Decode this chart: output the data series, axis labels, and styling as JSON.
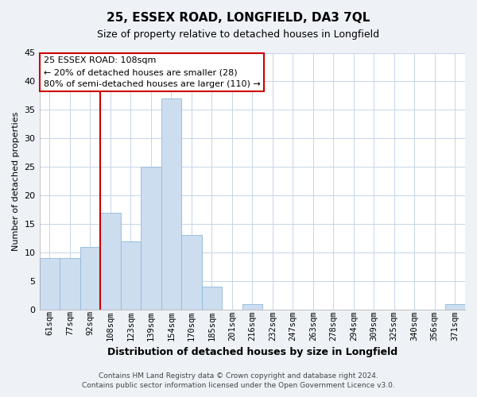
{
  "title": "25, ESSEX ROAD, LONGFIELD, DA3 7QL",
  "subtitle": "Size of property relative to detached houses in Longfield",
  "xlabel": "Distribution of detached houses by size in Longfield",
  "ylabel": "Number of detached properties",
  "bin_labels": [
    "61sqm",
    "77sqm",
    "92sqm",
    "108sqm",
    "123sqm",
    "139sqm",
    "154sqm",
    "170sqm",
    "185sqm",
    "201sqm",
    "216sqm",
    "232sqm",
    "247sqm",
    "263sqm",
    "278sqm",
    "294sqm",
    "309sqm",
    "325sqm",
    "340sqm",
    "356sqm",
    "371sqm"
  ],
  "bar_heights": [
    9,
    9,
    11,
    17,
    12,
    25,
    37,
    13,
    4,
    0,
    1,
    0,
    0,
    0,
    0,
    0,
    0,
    0,
    0,
    0,
    1
  ],
  "bar_color": "#ccddf0",
  "bar_edge_color": "#90b8d8",
  "vline_idx": 3,
  "vline_color": "#cc0000",
  "ylim": [
    0,
    45
  ],
  "yticks": [
    0,
    5,
    10,
    15,
    20,
    25,
    30,
    35,
    40,
    45
  ],
  "annotation_title": "25 ESSEX ROAD: 108sqm",
  "annotation_line1": "← 20% of detached houses are smaller (28)",
  "annotation_line2": "80% of semi-detached houses are larger (110) →",
  "footer_line1": "Contains HM Land Registry data © Crown copyright and database right 2024.",
  "footer_line2": "Contains public sector information licensed under the Open Government Licence v3.0.",
  "background_color": "#eef2f7",
  "plot_bg_color": "#ffffff",
  "grid_color": "#c5d5e8",
  "title_fontsize": 11,
  "subtitle_fontsize": 9,
  "ylabel_fontsize": 8,
  "xlabel_fontsize": 9,
  "tick_fontsize": 7.5,
  "footer_fontsize": 6.5
}
